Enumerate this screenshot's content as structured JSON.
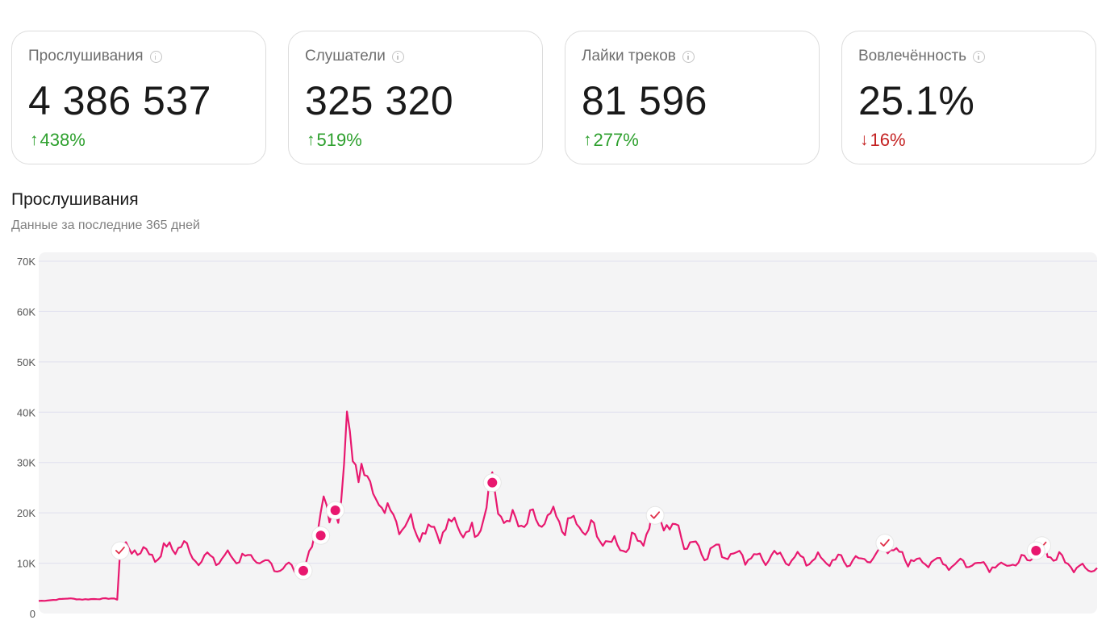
{
  "stats": [
    {
      "title": "Прослушивания",
      "value": "4 386 537",
      "change_arrow": "↑",
      "change_value": "438%",
      "direction": "up"
    },
    {
      "title": "Слушатели",
      "value": "325 320",
      "change_arrow": "↑",
      "change_value": "519%",
      "direction": "up"
    },
    {
      "title": "Лайки треков",
      "value": "81 596",
      "change_arrow": "↑",
      "change_value": "277%",
      "direction": "up"
    },
    {
      "title": "Вовлечённость",
      "value": "25.1%",
      "change_arrow": "↓",
      "change_value": "16%",
      "direction": "down"
    }
  ],
  "colors": {
    "up": "#2ea02e",
    "down": "#c42222",
    "line": "#e8186f",
    "plot_bg": "#f4f4f5"
  },
  "icons": {
    "info": "info-icon",
    "check_marker": "check-icon",
    "dot_marker": "dot-marker"
  },
  "chart": {
    "title": "Прослушивания",
    "subtitle": "Данные за последние 365 дней"
  },
  "chart_data": {
    "type": "line",
    "title": "Прослушивания",
    "subtitle": "Данные за последние 365 дней",
    "xlabel": "",
    "ylabel": "",
    "ylim": [
      0,
      70000
    ],
    "yticks": [
      0,
      10000,
      20000,
      30000,
      40000,
      50000,
      60000,
      70000
    ],
    "ytick_labels": [
      "0",
      "10K",
      "20K",
      "30K",
      "40K",
      "50K",
      "60K",
      "70K"
    ],
    "grid": true,
    "legend": "none",
    "day_count": 365,
    "anchor_points": [
      [
        0,
        2500
      ],
      [
        5,
        2700
      ],
      [
        10,
        3000
      ],
      [
        15,
        2800
      ],
      [
        20,
        2900
      ],
      [
        25,
        3000
      ],
      [
        27,
        2800
      ],
      [
        28,
        12500
      ],
      [
        32,
        13000
      ],
      [
        40,
        11500
      ],
      [
        48,
        13800
      ],
      [
        55,
        11000
      ],
      [
        62,
        10800
      ],
      [
        70,
        11500
      ],
      [
        78,
        9600
      ],
      [
        85,
        9200
      ],
      [
        90,
        8700
      ],
      [
        92,
        9500
      ],
      [
        95,
        15500
      ],
      [
        98,
        23000
      ],
      [
        100,
        17500
      ],
      [
        103,
        20500
      ],
      [
        106,
        36500
      ],
      [
        108,
        28500
      ],
      [
        111,
        30500
      ],
      [
        114,
        25500
      ],
      [
        118,
        21500
      ],
      [
        124,
        18500
      ],
      [
        130,
        17000
      ],
      [
        138,
        16500
      ],
      [
        144,
        17500
      ],
      [
        150,
        15500
      ],
      [
        156,
        26000
      ],
      [
        158,
        20500
      ],
      [
        162,
        18000
      ],
      [
        168,
        18000
      ],
      [
        176,
        18500
      ],
      [
        184,
        17500
      ],
      [
        190,
        16500
      ],
      [
        196,
        14000
      ],
      [
        202,
        13500
      ],
      [
        208,
        15500
      ],
      [
        212,
        19500
      ],
      [
        216,
        18000
      ],
      [
        222,
        15000
      ],
      [
        228,
        12500
      ],
      [
        234,
        12500
      ],
      [
        242,
        11500
      ],
      [
        250,
        11000
      ],
      [
        260,
        11000
      ],
      [
        270,
        10500
      ],
      [
        280,
        10500
      ],
      [
        288,
        11000
      ],
      [
        291,
        14000
      ],
      [
        295,
        11500
      ],
      [
        302,
        10500
      ],
      [
        312,
        10000
      ],
      [
        322,
        10000
      ],
      [
        332,
        9500
      ],
      [
        340,
        10500
      ],
      [
        345,
        13500
      ],
      [
        350,
        11000
      ],
      [
        356,
        9500
      ],
      [
        364,
        9000
      ]
    ],
    "markers": [
      {
        "day": 28,
        "value": 12500,
        "kind": "check"
      },
      {
        "day": 91,
        "value": 8500,
        "kind": "dot"
      },
      {
        "day": 97,
        "value": 15500,
        "kind": "dot"
      },
      {
        "day": 102,
        "value": 20500,
        "kind": "dot"
      },
      {
        "day": 156,
        "value": 26000,
        "kind": "dot"
      },
      {
        "day": 212,
        "value": 19500,
        "kind": "check"
      },
      {
        "day": 291,
        "value": 14000,
        "kind": "check"
      },
      {
        "day": 345,
        "value": 13500,
        "kind": "check"
      },
      {
        "day": 343,
        "value": 12500,
        "kind": "dot"
      }
    ]
  }
}
